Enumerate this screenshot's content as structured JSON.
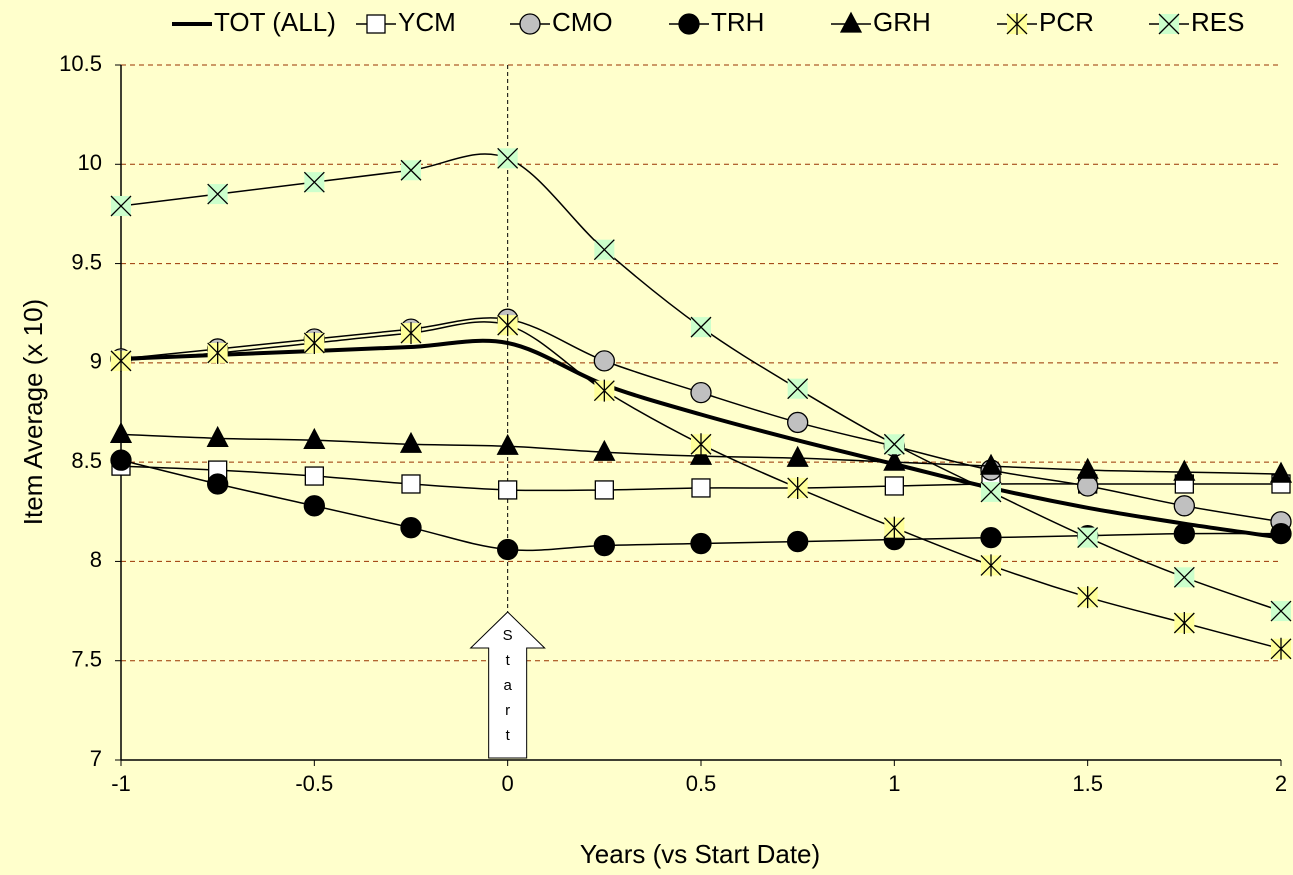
{
  "chart_data": {
    "type": "line",
    "x_label": "Years (vs Start Date)",
    "y_label": "Item Average (x 10)",
    "annotation": "Start",
    "annotation_x": 0,
    "x": [
      -1,
      -0.75,
      -0.5,
      -0.25,
      0,
      0.25,
      0.5,
      0.75,
      1,
      1.25,
      1.5,
      1.75,
      2
    ],
    "xlim": [
      -1,
      2
    ],
    "xticks": [
      -1,
      -0.5,
      0,
      0.5,
      1,
      1.5,
      2
    ],
    "ylim": [
      7,
      10.5
    ],
    "yticks": [
      7,
      7.5,
      8,
      8.5,
      9,
      9.5,
      10,
      10.5
    ],
    "grid": true,
    "legend": "top",
    "series": [
      {
        "name": "TOT (ALL)",
        "color": "#000000",
        "marker": "none",
        "marker_fill": "#000000",
        "line_width": 4,
        "values": [
          9.02,
          9.04,
          9.06,
          9.08,
          9.1,
          8.89,
          8.74,
          8.61,
          8.49,
          8.37,
          8.27,
          8.19,
          8.12
        ]
      },
      {
        "name": "YCM",
        "color": "#000000",
        "marker": "square",
        "marker_fill": "#ffffff",
        "line_width": 1.5,
        "values": [
          8.48,
          8.46,
          8.43,
          8.39,
          8.36,
          8.36,
          8.37,
          8.37,
          8.38,
          8.39,
          8.39,
          8.39,
          8.39
        ]
      },
      {
        "name": "CMO",
        "color": "#000000",
        "marker": "circle",
        "marker_fill": "#c0c0c0",
        "line_width": 1.5,
        "values": [
          9.02,
          9.07,
          9.12,
          9.17,
          9.22,
          9.01,
          8.85,
          8.7,
          8.58,
          8.46,
          8.38,
          8.28,
          8.2
        ]
      },
      {
        "name": "TRH",
        "color": "#000000",
        "marker": "circle",
        "marker_fill": "#000000",
        "line_width": 1.5,
        "values": [
          8.51,
          8.39,
          8.28,
          8.17,
          8.06,
          8.08,
          8.09,
          8.1,
          8.11,
          8.12,
          8.13,
          8.14,
          8.14
        ]
      },
      {
        "name": "GRH",
        "color": "#000000",
        "marker": "triangle",
        "marker_fill": "#000000",
        "line_width": 1.5,
        "values": [
          8.64,
          8.62,
          8.61,
          8.59,
          8.58,
          8.55,
          8.53,
          8.52,
          8.5,
          8.48,
          8.46,
          8.45,
          8.44
        ]
      },
      {
        "name": "PCR",
        "color": "#000000",
        "marker": "asterisk",
        "marker_fill": "#ffff99",
        "line_width": 1.5,
        "values": [
          9.01,
          9.05,
          9.1,
          9.15,
          9.19,
          8.86,
          8.59,
          8.37,
          8.17,
          7.98,
          7.82,
          7.69,
          7.56
        ]
      },
      {
        "name": "RES",
        "color": "#000000",
        "marker": "cross",
        "marker_fill": "#ccffcc",
        "line_width": 1.5,
        "values": [
          9.79,
          9.85,
          9.91,
          9.97,
          10.03,
          9.57,
          9.18,
          8.87,
          8.59,
          8.35,
          8.12,
          7.92,
          7.75
        ]
      }
    ]
  }
}
